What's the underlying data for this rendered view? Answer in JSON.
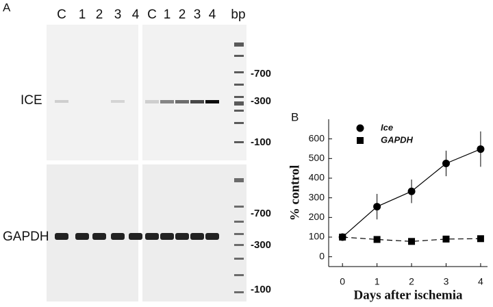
{
  "panel_a": {
    "label": "A",
    "lanes_left": [
      "C",
      "1",
      "2",
      "3",
      "4"
    ],
    "lanes_right": [
      "C",
      "1",
      "2",
      "3",
      "4"
    ],
    "ladder": "bp",
    "rows": [
      {
        "name": "ICE",
        "markers": [
          "-700",
          "-300",
          "-100"
        ]
      },
      {
        "name": "GAPDH",
        "markers": [
          "-700",
          "-300",
          "-100"
        ]
      }
    ]
  },
  "chart_data": {
    "type": "line",
    "panel_label": "B",
    "xlabel": "Days after ischemia",
    "ylabel": "% control",
    "x": [
      0,
      1,
      2,
      3,
      4
    ],
    "series": [
      {
        "name": "Ice",
        "color": "#000",
        "marker": "circle",
        "dash": false,
        "values": [
          100,
          255,
          333,
          475,
          548
        ],
        "errors": [
          null,
          65,
          60,
          65,
          90
        ]
      },
      {
        "name": "GAPDH",
        "color": "#000",
        "marker": "square",
        "dash": true,
        "values": [
          100,
          88,
          78,
          90,
          92
        ]
      }
    ],
    "xlim": [
      -0.4,
      4.2
    ],
    "ylim": [
      -50,
      700
    ],
    "xticks": [
      0,
      1,
      2,
      3,
      4
    ],
    "yticks": [
      0,
      100,
      200,
      300,
      400,
      500,
      600
    ]
  }
}
